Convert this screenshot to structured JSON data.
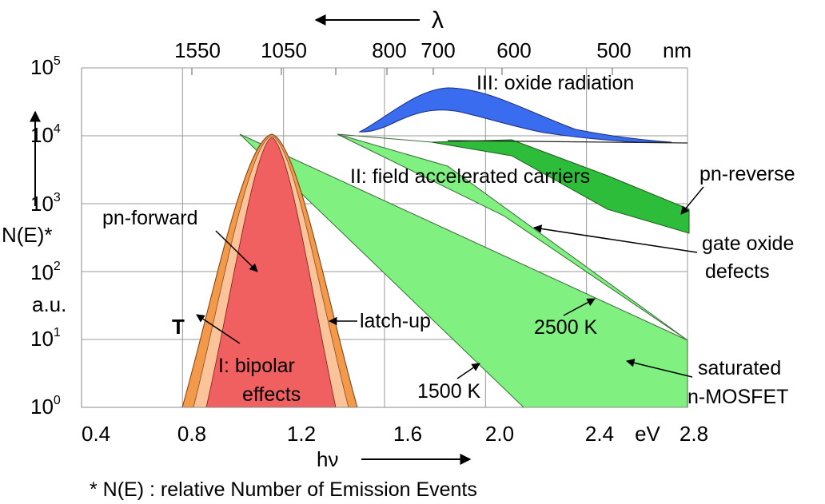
{
  "chart_data": {
    "type": "area",
    "title": "",
    "xlabel": "hν",
    "ylabel": "N(E)*",
    "ylabel_unit": "a.u.",
    "x_unit": "eV",
    "xlim": [
      0.4,
      2.8
    ],
    "ylim_exponent": [
      0,
      5
    ],
    "x_scale": "linear",
    "y_scale": "log",
    "grid": true,
    "x_ticks": [
      "0.4",
      "0.8",
      "1.2",
      "1.6",
      "2.0",
      "2.4",
      "2.8"
    ],
    "y_ticks": [
      {
        "base": "10",
        "exp": "0"
      },
      {
        "base": "10",
        "exp": "1"
      },
      {
        "base": "10",
        "exp": "2"
      },
      {
        "base": "10",
        "exp": "3"
      },
      {
        "base": "10",
        "exp": "4"
      },
      {
        "base": "10",
        "exp": "5"
      }
    ],
    "top_axis": {
      "label": "λ",
      "unit": "nm",
      "ticks": [
        "1550",
        "1050",
        "800",
        "700",
        "600",
        "500"
      ]
    },
    "footnote": "* N(E) : relative Number of Emission Events",
    "annotations": {
      "T": "T",
      "pn_forward": "pn-forward",
      "latch_up": "latch-up",
      "bipolar": "I: bipolar",
      "effects": "effects",
      "oxide_radiation": "III: oxide radiation",
      "field_carriers": "II: field accelerated carriers",
      "pn_reverse": "pn-reverse",
      "gate_oxide": "gate oxide",
      "defects": "defects",
      "k2500": "2500 K",
      "k1500": "1500 K",
      "saturated": "saturated",
      "nmosfet": "n-MOSFET"
    },
    "series": [
      {
        "name": "pn-forward",
        "x": [
          0.83,
          1.05,
          1.1,
          1.15,
          1.37
        ],
        "y": [
          1,
          3000,
          10000,
          3000,
          1
        ]
      },
      {
        "name": "I: bipolar effects",
        "x": [
          0.8,
          1.05,
          1.1,
          1.15,
          1.4
        ],
        "y": [
          1,
          3000,
          10000,
          3000,
          1
        ]
      },
      {
        "name": "latch-up",
        "x": [
          0.76,
          1.05,
          1.1,
          1.15,
          1.44
        ],
        "y": [
          1,
          3000,
          10000,
          3000,
          1
        ]
      },
      {
        "name": "1500 K",
        "x": [
          0.99,
          2.17,
          2.8
        ],
        "y": [
          10000,
          1,
          1
        ]
      },
      {
        "name": "2500 K",
        "x": [
          0.99,
          2.8
        ],
        "y": [
          10000,
          10
        ]
      },
      {
        "name": "gate oxide defects",
        "x": [
          1.35,
          2.8
        ],
        "y": [
          10000,
          10
        ]
      },
      {
        "name": "pn-reverse",
        "x": [
          1.35,
          2.8
        ],
        "y": [
          10000,
          500
        ]
      },
      {
        "name": "III: oxide radiation",
        "x": [
          1.6,
          1.83,
          2.7
        ],
        "y": [
          10000,
          40000,
          8000
        ]
      }
    ]
  }
}
